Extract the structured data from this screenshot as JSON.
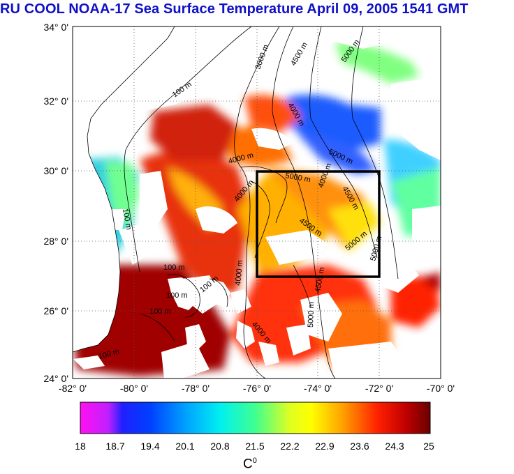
{
  "title": "RU COOL  NOAA-17 Sea Surface Temperature April 09, 2005 1541 GMT",
  "map": {
    "lat_labels": [
      "34° 0'",
      "32° 0'",
      "30° 0'",
      "28° 0'",
      "26° 0'",
      "24° 0'"
    ],
    "lon_labels": [
      "-82° 0'",
      "-80° 0'",
      "-78° 0'",
      "-76° 0'",
      "-74° 0'",
      "-72° 0'",
      "-70° 0'"
    ],
    "lat_range": [
      24,
      34
    ],
    "lon_range": [
      -82,
      -70
    ],
    "contour_labels": [
      "100 m",
      "100 m",
      "100 m",
      "100 m",
      "100 m",
      "100 m",
      "100 m",
      "3000 m",
      "4000 m",
      "4000 m",
      "4500 m",
      "5000 m",
      "5000 m",
      "4000 m",
      "5000 m",
      "4000 m",
      "4500 m",
      "4500 m",
      "5000 m",
      "5000 m",
      "4500 m",
      "4000 m",
      "5000 m",
      "4000 m"
    ],
    "study_box": {
      "lon": [
        -76,
        -72
      ],
      "lat": [
        27,
        30
      ],
      "color": "#000000"
    },
    "land_color": "#ffffff",
    "cloud_color": "#ffffff"
  },
  "colorbar": {
    "tick_labels": [
      "18",
      "18.7",
      "19.4",
      "20.1",
      "20.8",
      "21.5",
      "22.2",
      "22.9",
      "23.6",
      "24.3",
      "25"
    ],
    "range": [
      18,
      25
    ],
    "unit_base": "C",
    "unit_sup": "0",
    "colors": [
      "#ff00ff",
      "#0000ff",
      "#0080ff",
      "#00ffff",
      "#80ff80",
      "#ffff00",
      "#ff8000",
      "#ff0000",
      "#800000"
    ]
  }
}
